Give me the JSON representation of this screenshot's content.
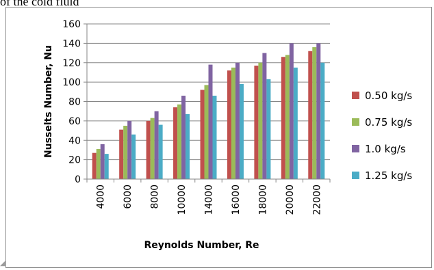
{
  "caption": "of the cold fluid",
  "corner_mark": "◢",
  "chart_data": {
    "type": "bar",
    "title": "",
    "xlabel": "Reynolds Number, Re",
    "ylabel": "Nusselts Number, Nu",
    "ylim": [
      0,
      160
    ],
    "yticks": [
      0,
      20,
      40,
      60,
      80,
      100,
      120,
      140,
      160
    ],
    "grid": true,
    "legend_position": "right",
    "categories": [
      "4000",
      "6000",
      "8000",
      "10000",
      "14000",
      "16000",
      "18000",
      "20000",
      "22000"
    ],
    "series": [
      {
        "name": "0.50 kg/s",
        "color": "#c0504d",
        "values": [
          27,
          51,
          60,
          74,
          92,
          112,
          117,
          126,
          132
        ]
      },
      {
        "name": "0.75 kg/s",
        "color": "#9bbb59",
        "values": [
          31,
          55,
          63,
          77,
          97,
          115,
          120,
          128,
          136
        ]
      },
      {
        "name": "1.0 kg/s",
        "color": "#8064a2",
        "values": [
          36,
          60,
          70,
          86,
          118,
          120,
          130,
          140,
          140
        ]
      },
      {
        "name": "1.25 kg/s",
        "color": "#4bacc6",
        "values": [
          26,
          46,
          56,
          67,
          86,
          98,
          103,
          115,
          120
        ]
      }
    ]
  }
}
